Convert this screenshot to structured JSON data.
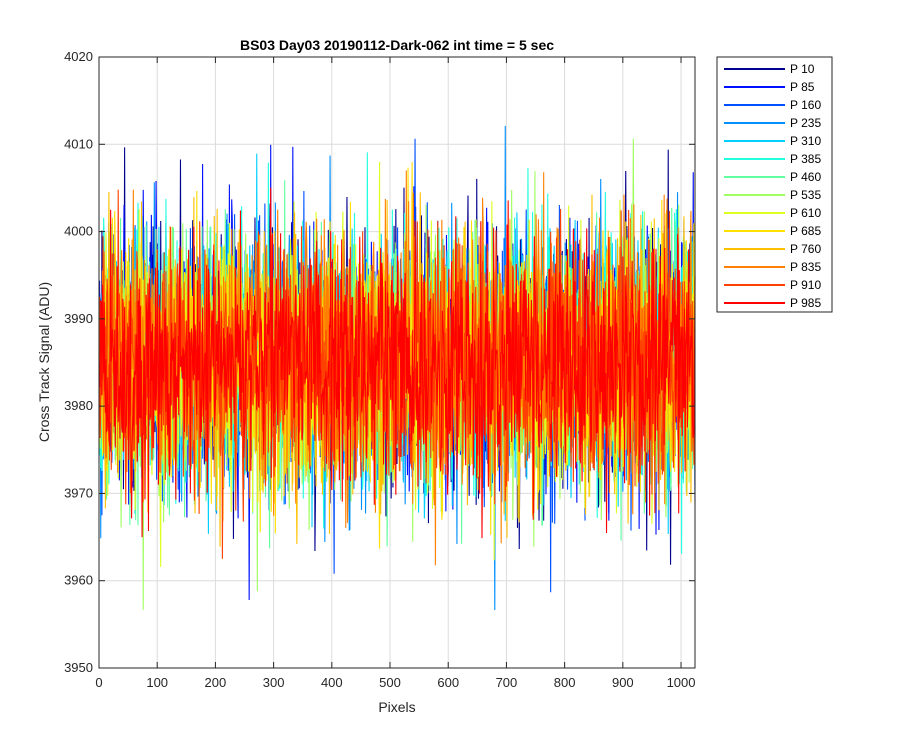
{
  "chart_data": {
    "type": "line",
    "title": "BS03 Day03 20190112-Dark-062 int time = 5 sec",
    "xlabel": "Pixels",
    "ylabel": "Cross Track Signal (ADU)",
    "xlim": [
      0,
      1024
    ],
    "ylim": [
      3950,
      4020
    ],
    "x_ticks": [
      0,
      100,
      200,
      300,
      400,
      500,
      600,
      700,
      800,
      900,
      1000
    ],
    "y_ticks": [
      3950,
      3960,
      3970,
      3980,
      3990,
      4000,
      4010,
      4020
    ],
    "grid": true,
    "legend_position": "outside-right",
    "x_count": 1024,
    "series_stats": {
      "mean": 3985,
      "std": 7.0,
      "min": 3951,
      "max": 4019
    },
    "series": [
      {
        "name": "P 10",
        "color": "#00008f"
      },
      {
        "name": "P 85",
        "color": "#0010ff"
      },
      {
        "name": "P 160",
        "color": "#0050ff"
      },
      {
        "name": "P 235",
        "color": "#0090ff"
      },
      {
        "name": "P 310",
        "color": "#00cfff"
      },
      {
        "name": "P 385",
        "color": "#20ffdf"
      },
      {
        "name": "P 460",
        "color": "#60ffa0"
      },
      {
        "name": "P 535",
        "color": "#a0ff60"
      },
      {
        "name": "P 610",
        "color": "#dfff20"
      },
      {
        "name": "P 685",
        "color": "#ffe000"
      },
      {
        "name": "P 760",
        "color": "#ffc000"
      },
      {
        "name": "P 835",
        "color": "#ff8000"
      },
      {
        "name": "P 910",
        "color": "#ff4000"
      },
      {
        "name": "P 985",
        "color": "#ff0000"
      }
    ]
  }
}
